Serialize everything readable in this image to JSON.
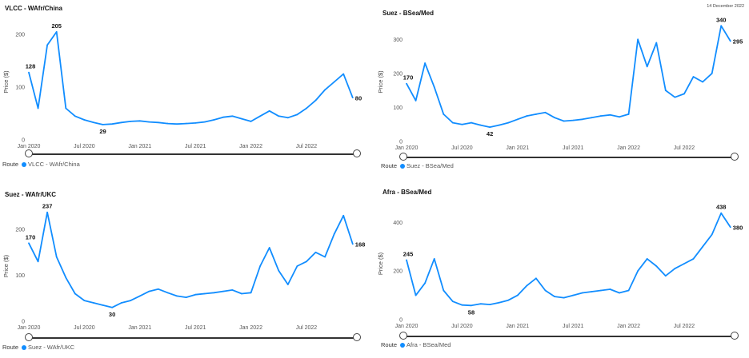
{
  "report_date": "14 December 2022",
  "line_color": "#118DFF",
  "chart_data": [
    {
      "type": "line",
      "title": "VLCC - WAfr/China",
      "ylabel": "Price ($)",
      "ylim": [
        0,
        220
      ],
      "yticks": [
        0,
        100,
        200
      ],
      "xticks": [
        "Jan 2020",
        "Jul 2020",
        "Jan 2021",
        "Jul 2021",
        "Jan 2022",
        "Jul 2022"
      ],
      "legend_title": "Route",
      "series": [
        {
          "name": "VLCC - WAfr/China",
          "x": [
            "2020-01",
            "2020-02",
            "2020-03",
            "2020-04",
            "2020-05",
            "2020-06",
            "2020-07",
            "2020-08",
            "2020-09",
            "2020-10",
            "2020-11",
            "2020-12",
            "2021-01",
            "2021-02",
            "2021-03",
            "2021-04",
            "2021-05",
            "2021-06",
            "2021-07",
            "2021-08",
            "2021-09",
            "2021-10",
            "2021-11",
            "2021-12",
            "2022-01",
            "2022-02",
            "2022-03",
            "2022-04",
            "2022-05",
            "2022-06",
            "2022-07",
            "2022-08",
            "2022-09",
            "2022-10",
            "2022-11",
            "2022-12"
          ],
          "values": [
            128,
            60,
            180,
            205,
            60,
            45,
            38,
            33,
            29,
            30,
            33,
            35,
            36,
            34,
            33,
            31,
            30,
            31,
            32,
            34,
            38,
            43,
            45,
            40,
            35,
            45,
            55,
            45,
            42,
            48,
            60,
            75,
            95,
            110,
            125,
            80
          ]
        }
      ],
      "labels": [
        {
          "text": "128",
          "i": 0
        },
        {
          "text": "205",
          "i": 3
        },
        {
          "text": "29",
          "i": 8
        },
        {
          "text": "80",
          "i": 35
        }
      ]
    },
    {
      "type": "line",
      "title": "Suez - BSea/Med",
      "ylabel": "Price ($)",
      "ylim": [
        0,
        350
      ],
      "yticks": [
        0,
        100,
        200,
        300
      ],
      "xticks": [
        "Jan 2020",
        "Jul 2020",
        "Jan 2021",
        "Jul 2021",
        "Jan 2022",
        "Jul 2022"
      ],
      "legend_title": "Route",
      "series": [
        {
          "name": "Suez - BSea/Med",
          "x": [
            "2020-01",
            "2020-02",
            "2020-03",
            "2020-04",
            "2020-05",
            "2020-06",
            "2020-07",
            "2020-08",
            "2020-09",
            "2020-10",
            "2020-11",
            "2020-12",
            "2021-01",
            "2021-02",
            "2021-03",
            "2021-04",
            "2021-05",
            "2021-06",
            "2021-07",
            "2021-08",
            "2021-09",
            "2021-10",
            "2021-11",
            "2021-12",
            "2022-01",
            "2022-02",
            "2022-03",
            "2022-04",
            "2022-05",
            "2022-06",
            "2022-07",
            "2022-08",
            "2022-09",
            "2022-10",
            "2022-11",
            "2022-12"
          ],
          "values": [
            170,
            120,
            230,
            160,
            80,
            55,
            50,
            55,
            48,
            42,
            48,
            55,
            65,
            75,
            80,
            85,
            70,
            60,
            62,
            65,
            70,
            75,
            78,
            72,
            80,
            300,
            220,
            290,
            150,
            130,
            140,
            190,
            175,
            200,
            340,
            295
          ]
        }
      ],
      "labels": [
        {
          "text": "170",
          "i": 0
        },
        {
          "text": "42",
          "i": 9
        },
        {
          "text": "340",
          "i": 34
        },
        {
          "text": "295",
          "i": 35
        }
      ]
    },
    {
      "type": "line",
      "title": "Suez - WAfr/UKC",
      "ylabel": "Price ($)",
      "ylim": [
        0,
        240
      ],
      "yticks": [
        0,
        100,
        200
      ],
      "xticks": [
        "Jan 2020",
        "Jul 2020",
        "Jan 2021",
        "Jul 2021",
        "Jan 2022",
        "Jul 2022"
      ],
      "legend_title": "Route",
      "series": [
        {
          "name": "Suez - WAfr/UKC",
          "x": [
            "2020-01",
            "2020-02",
            "2020-03",
            "2020-04",
            "2020-05",
            "2020-06",
            "2020-07",
            "2020-08",
            "2020-09",
            "2020-10",
            "2020-11",
            "2020-12",
            "2021-01",
            "2021-02",
            "2021-03",
            "2021-04",
            "2021-05",
            "2021-06",
            "2021-07",
            "2021-08",
            "2021-09",
            "2021-10",
            "2021-11",
            "2021-12",
            "2022-01",
            "2022-02",
            "2022-03",
            "2022-04",
            "2022-05",
            "2022-06",
            "2022-07",
            "2022-08",
            "2022-09",
            "2022-10",
            "2022-11",
            "2022-12"
          ],
          "values": [
            170,
            130,
            237,
            140,
            95,
            60,
            45,
            40,
            35,
            30,
            40,
            45,
            55,
            65,
            70,
            62,
            55,
            52,
            58,
            60,
            62,
            65,
            68,
            60,
            62,
            120,
            160,
            110,
            80,
            120,
            130,
            150,
            140,
            190,
            230,
            168
          ]
        }
      ],
      "labels": [
        {
          "text": "170",
          "i": 0
        },
        {
          "text": "237",
          "i": 2
        },
        {
          "text": "30",
          "i": 9
        },
        {
          "text": "168",
          "i": 35
        }
      ]
    },
    {
      "type": "line",
      "title": "Afra - BSea/Med",
      "ylabel": "Price ($)",
      "ylim": [
        0,
        460
      ],
      "yticks": [
        0,
        200,
        400
      ],
      "xticks": [
        "Jan 2020",
        "Jul 2020",
        "Jan 2021",
        "Jul 2021",
        "Jan 2022",
        "Jul 2022"
      ],
      "legend_title": "Route",
      "series": [
        {
          "name": "Afra - BSea/Med",
          "x": [
            "2020-01",
            "2020-02",
            "2020-03",
            "2020-04",
            "2020-05",
            "2020-06",
            "2020-07",
            "2020-08",
            "2020-09",
            "2020-10",
            "2020-11",
            "2020-12",
            "2021-01",
            "2021-02",
            "2021-03",
            "2021-04",
            "2021-05",
            "2021-06",
            "2021-07",
            "2021-08",
            "2021-09",
            "2021-10",
            "2021-11",
            "2021-12",
            "2022-01",
            "2022-02",
            "2022-03",
            "2022-04",
            "2022-05",
            "2022-06",
            "2022-07",
            "2022-08",
            "2022-09",
            "2022-10",
            "2022-11",
            "2022-12"
          ],
          "values": [
            245,
            100,
            150,
            250,
            120,
            75,
            60,
            58,
            65,
            62,
            70,
            80,
            100,
            140,
            170,
            120,
            95,
            90,
            100,
            110,
            115,
            120,
            125,
            110,
            120,
            200,
            250,
            220,
            180,
            210,
            230,
            250,
            300,
            350,
            438,
            380
          ]
        }
      ],
      "labels": [
        {
          "text": "245",
          "i": 0
        },
        {
          "text": "58",
          "i": 7
        },
        {
          "text": "438",
          "i": 34
        },
        {
          "text": "380",
          "i": 35
        }
      ]
    }
  ]
}
